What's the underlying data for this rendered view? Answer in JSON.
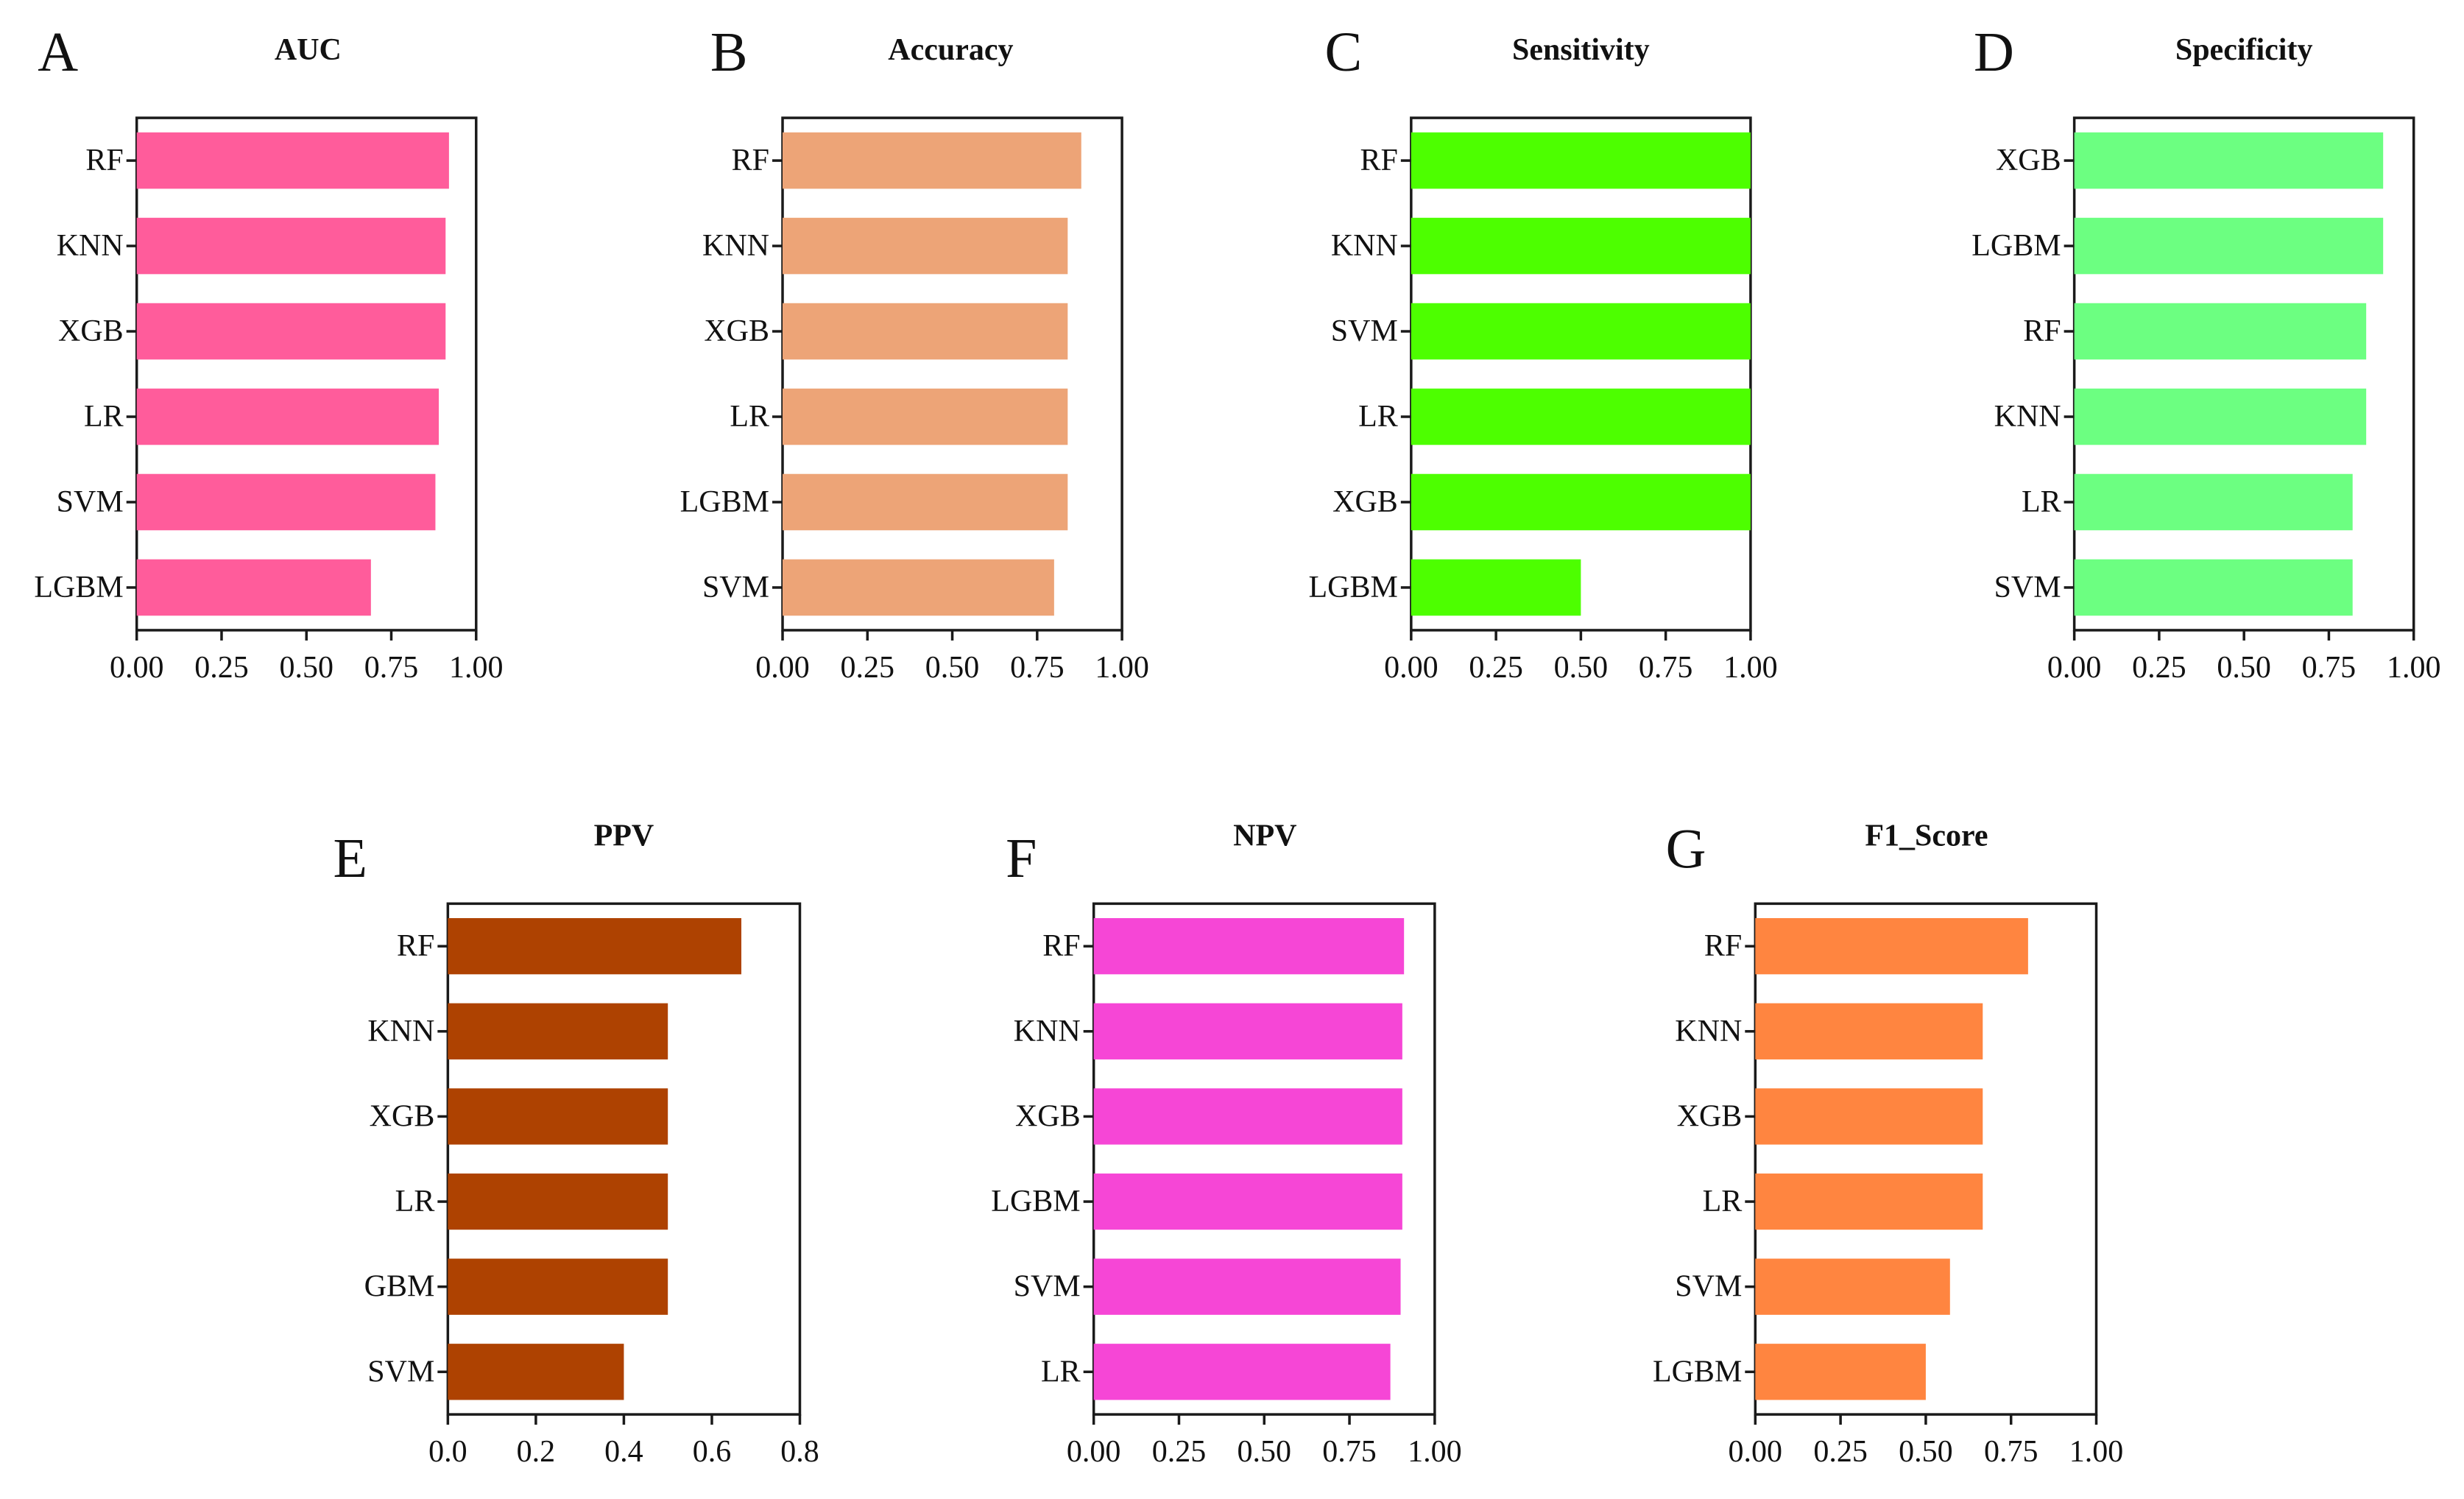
{
  "chart_data": [
    {
      "type": "bar",
      "orientation": "horizontal",
      "panel": "A",
      "title": "AUC",
      "color": "#FF5C9B",
      "xlim": [
        0,
        1
      ],
      "xticks": [
        "0.00",
        "0.25",
        "0.50",
        "0.75",
        "1.00"
      ],
      "categories": [
        "RF",
        "KNN",
        "XGB",
        "LR",
        "SVM",
        "LGBM"
      ],
      "values": [
        0.92,
        0.91,
        0.91,
        0.89,
        0.88,
        0.69
      ]
    },
    {
      "type": "bar",
      "orientation": "horizontal",
      "panel": "B",
      "title": "Accuracy",
      "color": "#EDA477",
      "xlim": [
        0,
        1
      ],
      "xticks": [
        "0.00",
        "0.25",
        "0.50",
        "0.75",
        "1.00"
      ],
      "categories": [
        "RF",
        "KNN",
        "XGB",
        "LR",
        "LGBM",
        "SVM"
      ],
      "values": [
        0.88,
        0.84,
        0.84,
        0.84,
        0.84,
        0.8
      ]
    },
    {
      "type": "bar",
      "orientation": "horizontal",
      "panel": "C",
      "title": "Sensitivity",
      "color": "#4DFF00",
      "xlim": [
        0,
        1
      ],
      "xticks": [
        "0.00",
        "0.25",
        "0.50",
        "0.75",
        "1.00"
      ],
      "categories": [
        "RF",
        "KNN",
        "SVM",
        "LR",
        "XGB",
        "LGBM"
      ],
      "values": [
        1.0,
        1.0,
        1.0,
        1.0,
        1.0,
        0.5
      ]
    },
    {
      "type": "bar",
      "orientation": "horizontal",
      "panel": "D",
      "title": "Specificity",
      "color": "#6CFF81",
      "xlim": [
        0,
        1
      ],
      "xticks": [
        "0.00",
        "0.25",
        "0.50",
        "0.75",
        "1.00"
      ],
      "categories": [
        "XGB",
        "LGBM",
        "RF",
        "KNN",
        "LR",
        "SVM"
      ],
      "values": [
        0.91,
        0.91,
        0.86,
        0.86,
        0.82,
        0.82
      ]
    },
    {
      "type": "bar",
      "orientation": "horizontal",
      "panel": "E",
      "title": "PPV",
      "color": "#AE4201",
      "xlim": [
        0,
        0.8
      ],
      "xticks": [
        "0.0",
        "0.2",
        "0.4",
        "0.6",
        "0.8"
      ],
      "categories": [
        "RF",
        "KNN",
        "XGB",
        "LR",
        "GBM",
        "SVM"
      ],
      "values": [
        0.667,
        0.5,
        0.5,
        0.5,
        0.5,
        0.4
      ]
    },
    {
      "type": "bar",
      "orientation": "horizontal",
      "panel": "F",
      "title": "NPV",
      "color": "#F646D6",
      "xlim": [
        0,
        1
      ],
      "xticks": [
        "0.00",
        "0.25",
        "0.50",
        "0.75",
        "1.00"
      ],
      "categories": [
        "RF",
        "KNN",
        "XGB",
        "LGBM",
        "SVM",
        "LR"
      ],
      "values": [
        0.91,
        0.905,
        0.905,
        0.905,
        0.9,
        0.87
      ]
    },
    {
      "type": "bar",
      "orientation": "horizontal",
      "panel": "G",
      "title": "F1_Score",
      "color": "#FF8540",
      "xlim": [
        0,
        1
      ],
      "xticks": [
        "0.00",
        "0.25",
        "0.50",
        "0.75",
        "1.00"
      ],
      "categories": [
        "RF",
        "KNN",
        "XGB",
        "LR",
        "SVM",
        "LGBM"
      ],
      "values": [
        0.8,
        0.667,
        0.667,
        0.667,
        0.571,
        0.5
      ]
    }
  ]
}
